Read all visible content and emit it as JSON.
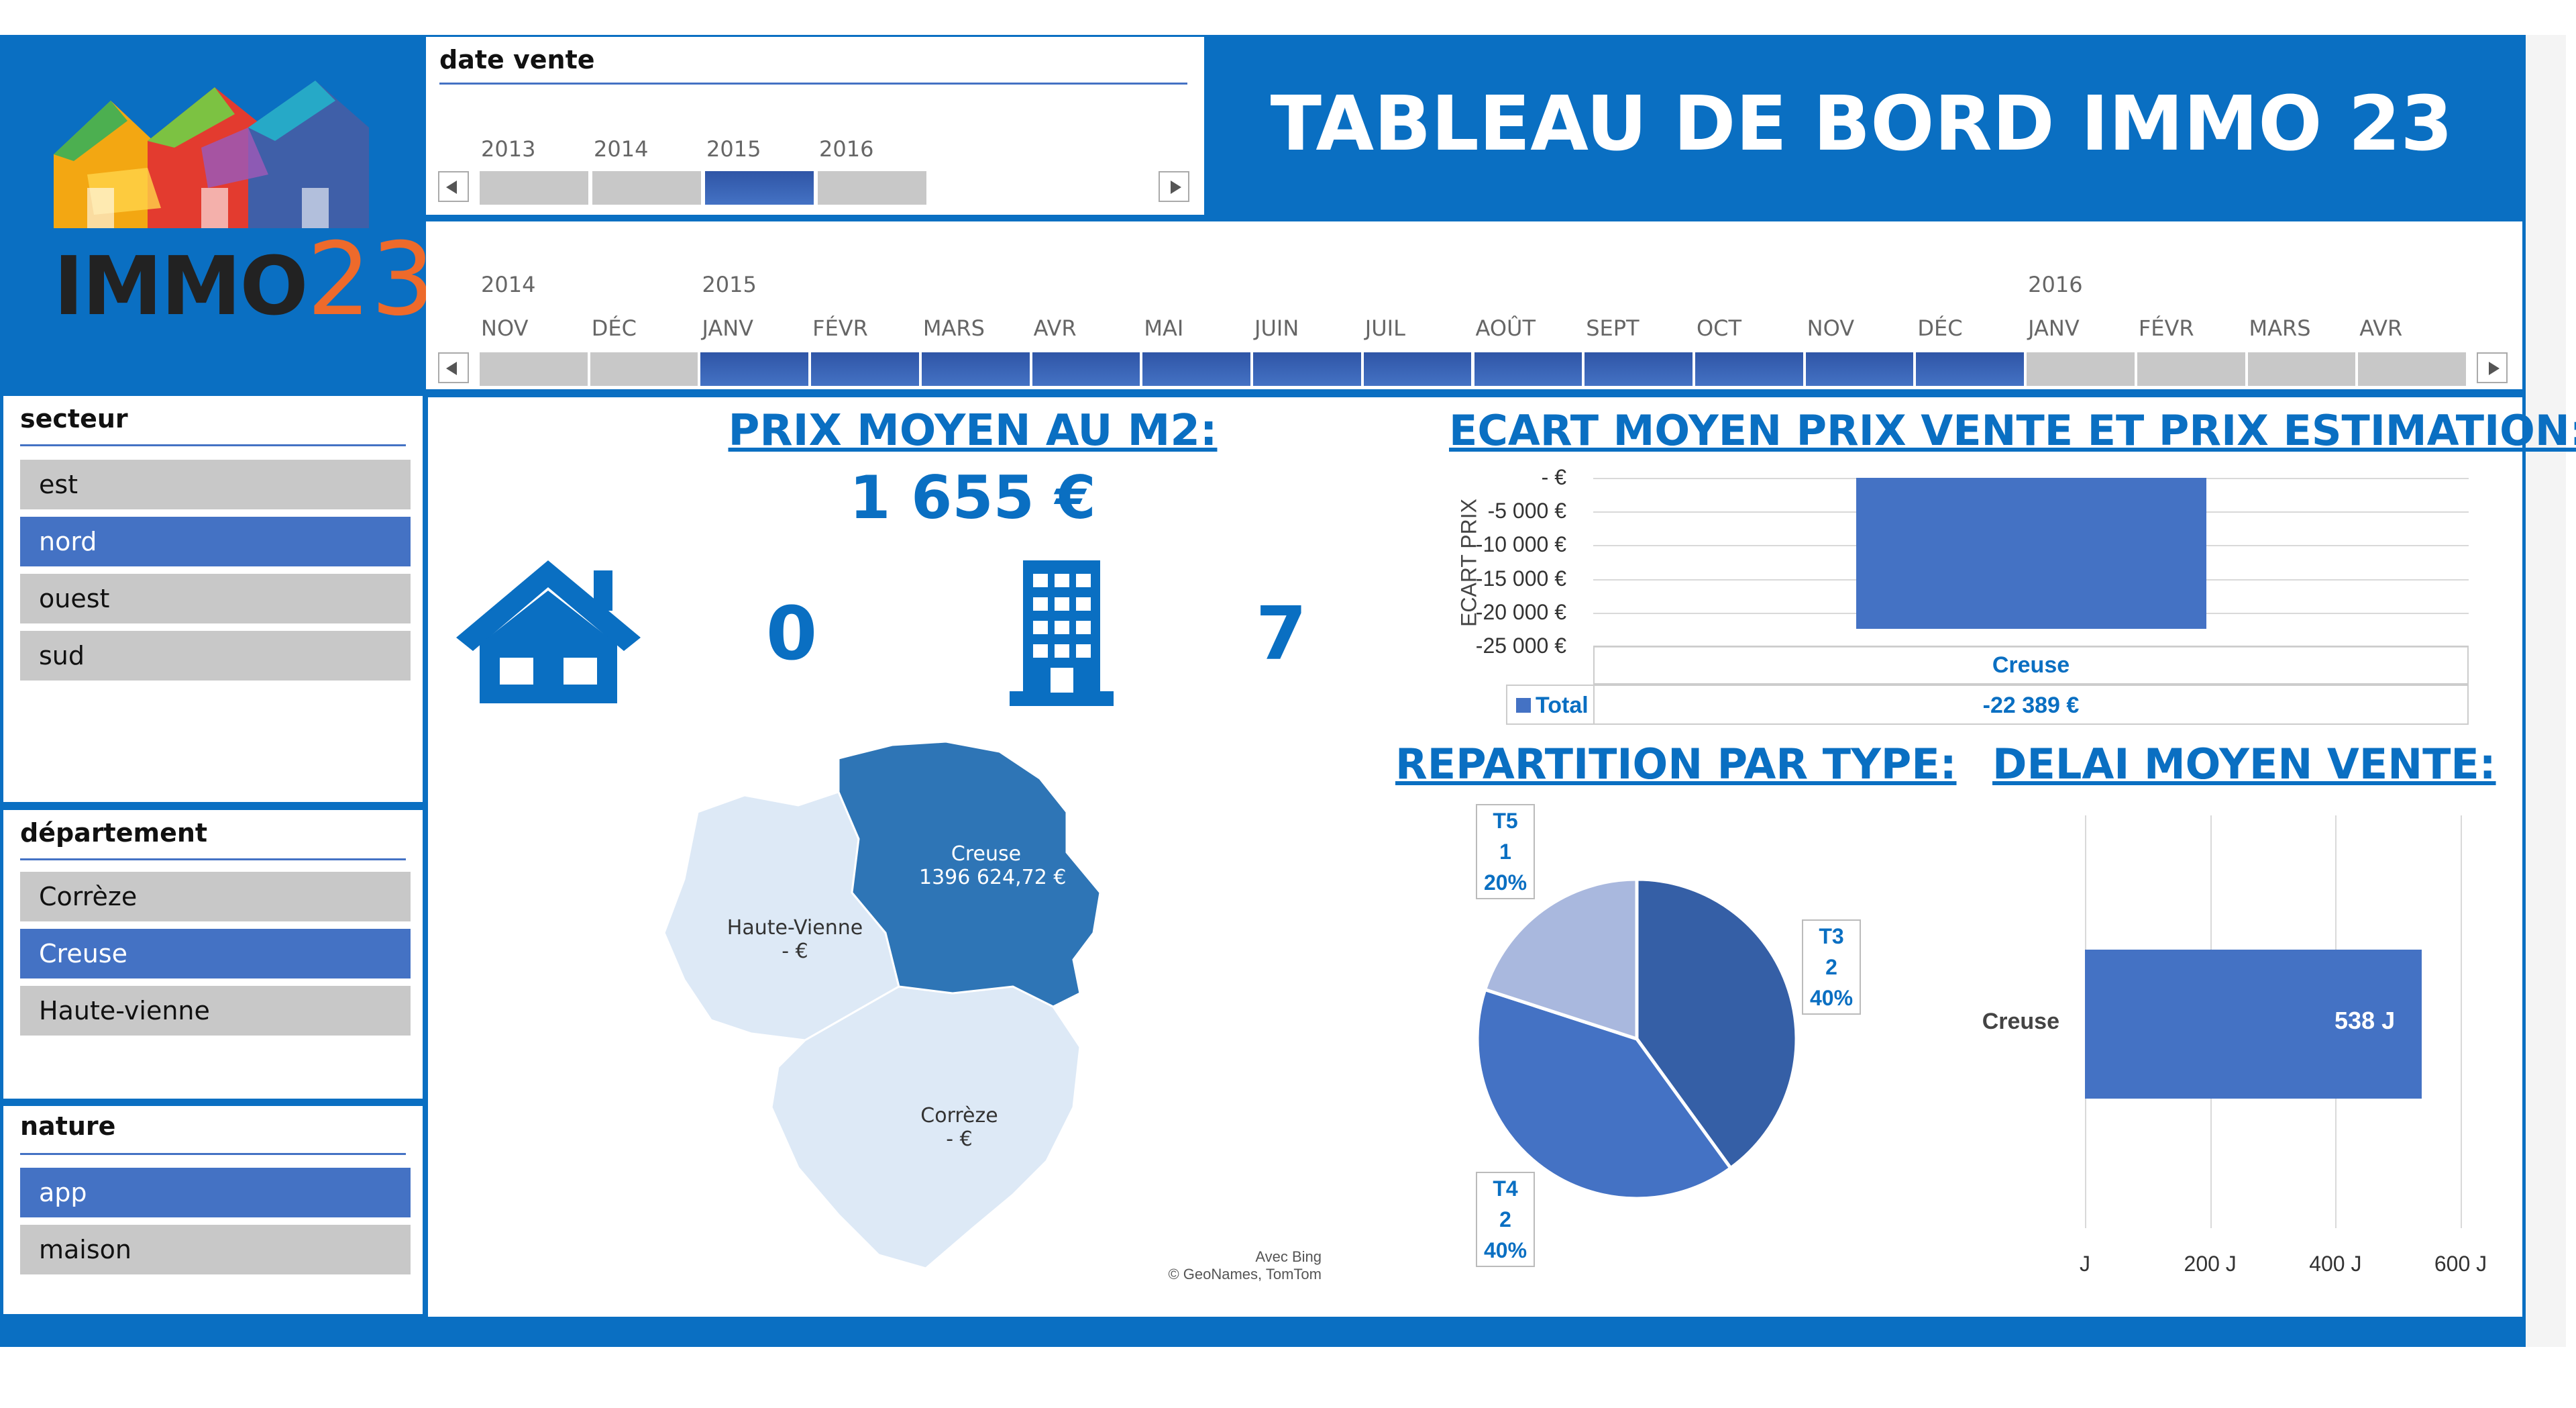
{
  "header": {
    "title": "TABLEAU DE BORD IMMO 23",
    "logo_text": "IMMO",
    "logo_num": "23"
  },
  "year_timeline": {
    "title": "date vente",
    "years": [
      "2013",
      "2014",
      "2015",
      "2016"
    ],
    "selected": [
      false,
      false,
      true,
      false
    ]
  },
  "month_timeline": {
    "year_labels": [
      "2014",
      "2015",
      "2016"
    ],
    "months": [
      "NOV",
      "DÉC",
      "JANV",
      "FÉVR",
      "MARS",
      "AVR",
      "MAI",
      "JUIN",
      "JUIL",
      "AOÛT",
      "SEPT",
      "OCT",
      "NOV",
      "DÉC",
      "JANV",
      "FÉVR",
      "MARS",
      "AVR"
    ],
    "selected": [
      false,
      false,
      true,
      true,
      true,
      true,
      true,
      true,
      true,
      true,
      true,
      true,
      true,
      true,
      false,
      false,
      false,
      false
    ]
  },
  "secteur": {
    "title": "secteur",
    "items": [
      {
        "label": "est",
        "selected": false
      },
      {
        "label": "nord",
        "selected": true
      },
      {
        "label": "ouest",
        "selected": false
      },
      {
        "label": "sud",
        "selected": false
      }
    ]
  },
  "departement": {
    "title": "département",
    "items": [
      {
        "label": "Corrèze",
        "selected": false
      },
      {
        "label": "Creuse",
        "selected": true
      },
      {
        "label": "Haute-vienne",
        "selected": false
      }
    ]
  },
  "nature": {
    "title": "nature",
    "items": [
      {
        "label": "app",
        "selected": true
      },
      {
        "label": "maison",
        "selected": false
      }
    ]
  },
  "kpi": {
    "prix_title": "PRIX MOYEN AU M2:",
    "prix_value": "1 655 €",
    "maison_count": "0",
    "app_count": "7",
    "house_icon": "house-icon",
    "building_icon": "building-icon"
  },
  "map": {
    "regions": [
      {
        "name": "Creuse",
        "value": "1396 624,72 €",
        "color": "#2e75b6"
      },
      {
        "name": "Haute-Vienne",
        "value": "-  €",
        "color": "#dde9f6"
      },
      {
        "name": "Corrèze",
        "value": "-  €",
        "color": "#dde9f6"
      }
    ],
    "credit1": "Avec Bing",
    "credit2": "© GeoNames, TomTom"
  },
  "ecart": {
    "title": "ECART MOYEN PRIX VENTE ET PRIX ESTIMATION:",
    "ylabel": "ECART PRIX",
    "ticks": [
      "-  €",
      "-5 000 €",
      "-10 000 €",
      "-15 000 €",
      "-20 000 €",
      "-25 000 €"
    ],
    "tick_values": [
      0,
      -5000,
      -10000,
      -15000,
      -20000,
      -25000
    ],
    "category": "Creuse",
    "legend": "Total",
    "value_label": "-22 389 €",
    "value": -22389,
    "color": "#4472c4"
  },
  "chart_data": [
    {
      "type": "bar",
      "title": "ECART MOYEN PRIX VENTE ET PRIX ESTIMATION:",
      "ylabel": "ECART PRIX",
      "categories": [
        "Creuse"
      ],
      "series": [
        {
          "name": "Total",
          "values": [
            -22389
          ]
        }
      ],
      "ylim": [
        -25000,
        0
      ]
    },
    {
      "type": "pie",
      "title": "REPARTITION PAR TYPE:",
      "categories": [
        "T3",
        "T4",
        "T5"
      ],
      "values": [
        2,
        2,
        1
      ]
    },
    {
      "type": "bar",
      "title": "DELAI MOYEN VENTE:",
      "categories": [
        "Creuse"
      ],
      "values": [
        538
      ],
      "xlim": [
        0,
        600
      ]
    }
  ],
  "repartition": {
    "title": "REPARTITION PAR TYPE:",
    "slices": [
      {
        "name": "T3",
        "count": "2",
        "pct": "40%",
        "value": 2,
        "color": "#355fa6"
      },
      {
        "name": "T4",
        "count": "2",
        "pct": "40%",
        "value": 2,
        "color": "#4472c4"
      },
      {
        "name": "T5",
        "count": "1",
        "pct": "20%",
        "value": 1,
        "color": "#a9b8de"
      }
    ]
  },
  "delai": {
    "title": "DELAI MOYEN VENTE:",
    "category": "Creuse",
    "value": 538,
    "value_label": "538 J",
    "ticks": [
      "J",
      "200 J",
      "400 J",
      "600 J"
    ],
    "tick_values": [
      0,
      200,
      400,
      600
    ],
    "color": "#4472c4"
  }
}
